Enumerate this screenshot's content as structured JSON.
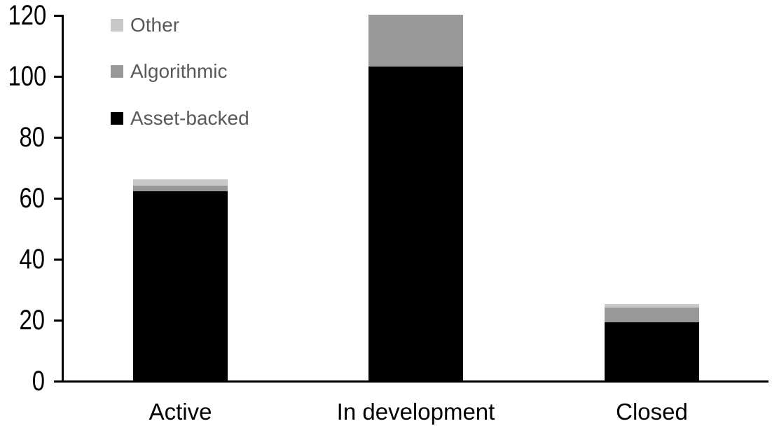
{
  "chart_data": {
    "type": "bar",
    "stacked": true,
    "title": "",
    "xlabel": "",
    "ylabel": "",
    "categories": [
      "Active",
      "In development",
      "Closed"
    ],
    "series": [
      {
        "name": "Asset-backed",
        "color": "#000000",
        "values": [
          62,
          103,
          19
        ]
      },
      {
        "name": "Algorithmic",
        "color": "#989898",
        "values": [
          2,
          17,
          5
        ]
      },
      {
        "name": "Other",
        "color": "#c8c8c8",
        "values": [
          2,
          0,
          1
        ]
      }
    ],
    "totals": [
      66,
      120,
      25
    ],
    "ylim": [
      0,
      120
    ],
    "yticks": [
      0,
      20,
      40,
      60,
      80,
      100,
      120
    ],
    "grid": false,
    "legend_position": "top-left",
    "legend_order": [
      "Other",
      "Algorithmic",
      "Asset-backed"
    ],
    "colors": {
      "axis": "#000000",
      "tick_label": "#000000",
      "category_label": "#000000",
      "legend_text": "#595959",
      "background": "#ffffff"
    }
  }
}
